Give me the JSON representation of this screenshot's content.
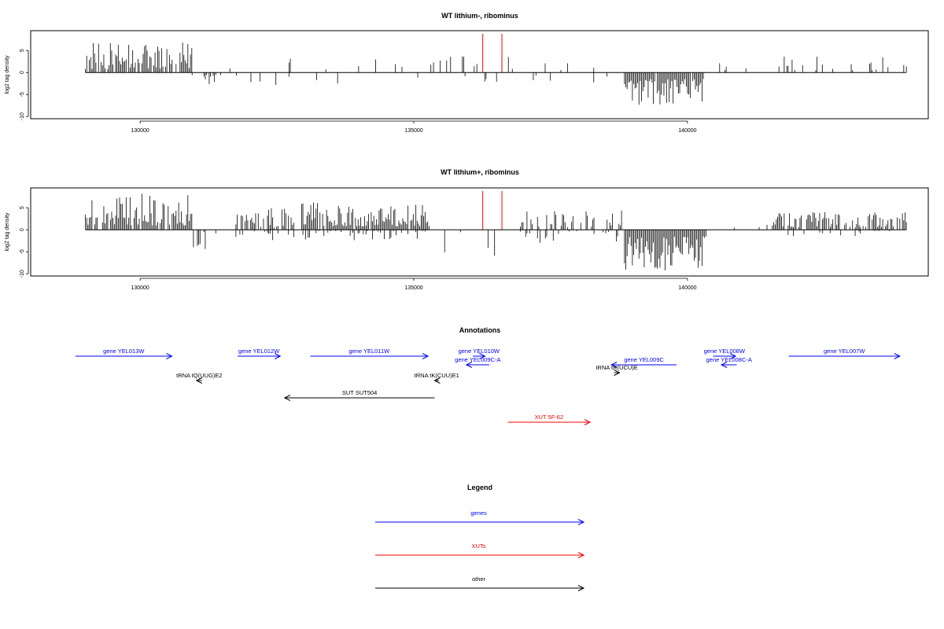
{
  "chart_data": [
    {
      "type": "bar",
      "title": "WT lithium-, ribominus",
      "ylabel": "log2 tag density",
      "xlim": [
        128000,
        144400
      ],
      "ylim": [
        -10.5,
        9.5
      ],
      "xticks": [
        130000,
        135000,
        140000
      ],
      "yticks": [
        -10,
        -5,
        0,
        5
      ],
      "grid": false,
      "markers": [
        136260,
        136610
      ],
      "marker_color": "#ff0000",
      "segments": [
        {
          "x0": 129000,
          "x1": 130950,
          "sign": 1,
          "min": 0.8,
          "max": 7.0,
          "density": 0.85
        },
        {
          "x0": 130950,
          "x1": 131400,
          "sign": -1,
          "min": 0.5,
          "max": 3.0,
          "density": 0.3
        },
        {
          "x0": 131400,
          "x1": 138600,
          "sign": 1,
          "min": 0.5,
          "max": 3.8,
          "density": 0.08
        },
        {
          "x0": 131400,
          "x1": 138600,
          "sign": -1,
          "min": 0.5,
          "max": 3.5,
          "density": 0.06
        },
        {
          "x0": 138850,
          "x1": 140300,
          "sign": -1,
          "min": 1.5,
          "max": 7.5,
          "density": 0.95
        },
        {
          "x0": 140300,
          "x1": 141500,
          "sign": 1,
          "min": 0.5,
          "max": 2.5,
          "density": 0.05
        },
        {
          "x0": 141600,
          "x1": 144000,
          "sign": 1,
          "min": 0.5,
          "max": 3.8,
          "density": 0.2
        }
      ]
    },
    {
      "type": "bar",
      "title": "WT lithium+, ribominus",
      "ylabel": "log2 tag density",
      "xlim": [
        128000,
        144400
      ],
      "ylim": [
        -10.5,
        9.5
      ],
      "xticks": [
        130000,
        135000,
        140000
      ],
      "yticks": [
        -10,
        -5,
        0,
        5
      ],
      "grid": false,
      "markers": [
        136260,
        136610
      ],
      "marker_color": "#ff0000",
      "segments": [
        {
          "x0": 129000,
          "x1": 130950,
          "sign": 1,
          "min": 1.0,
          "max": 8.5,
          "density": 0.95
        },
        {
          "x0": 130950,
          "x1": 131400,
          "sign": -1,
          "min": 0.5,
          "max": 4.5,
          "density": 0.35
        },
        {
          "x0": 131750,
          "x1": 132850,
          "sign": 1,
          "min": 0.5,
          "max": 5.0,
          "density": 0.5
        },
        {
          "x0": 132950,
          "x1": 135300,
          "sign": 1,
          "min": 0.8,
          "max": 6.5,
          "density": 0.9
        },
        {
          "x0": 131750,
          "x1": 135300,
          "sign": -1,
          "min": 0.3,
          "max": 2.5,
          "density": 0.25
        },
        {
          "x0": 135300,
          "x1": 136800,
          "sign": -1,
          "min": 0.5,
          "max": 6.0,
          "density": 0.12
        },
        {
          "x0": 136900,
          "x1": 138800,
          "sign": 1,
          "min": 0.5,
          "max": 4.5,
          "density": 0.45
        },
        {
          "x0": 136900,
          "x1": 138800,
          "sign": -1,
          "min": 0.3,
          "max": 3.0,
          "density": 0.15
        },
        {
          "x0": 138850,
          "x1": 140350,
          "sign": -1,
          "min": 1.5,
          "max": 9.5,
          "density": 0.97
        },
        {
          "x0": 140350,
          "x1": 141600,
          "sign": 1,
          "min": 0.5,
          "max": 3.5,
          "density": 0.1
        },
        {
          "x0": 141600,
          "x1": 144000,
          "sign": 1,
          "min": 0.5,
          "max": 4.0,
          "density": 0.8
        },
        {
          "x0": 141600,
          "x1": 144000,
          "sign": -1,
          "min": 0.3,
          "max": 1.5,
          "density": 0.15
        }
      ]
    }
  ],
  "annotations": {
    "title": "Annotations",
    "items": [
      {
        "label": "gene YEL013W",
        "start": 128820,
        "end": 130580,
        "color": "#0000ff",
        "row": 0
      },
      {
        "label": "gene YEL012W",
        "start": 131780,
        "end": 132560,
        "color": "#0000ff",
        "row": 0
      },
      {
        "label": "gene YEL011W",
        "start": 133110,
        "end": 135260,
        "color": "#0000ff",
        "row": 0
      },
      {
        "label": "gene YEL010W",
        "start": 136080,
        "end": 136300,
        "color": "#0000ff",
        "row": 0
      },
      {
        "label": "gene YEL009C-A",
        "start": 136380,
        "end": 135960,
        "color": "#0000ff",
        "row": 1
      },
      {
        "label": "gene YEL009C",
        "start": 139800,
        "end": 138610,
        "color": "#0000ff",
        "row": 1
      },
      {
        "label": "gene YEL008W",
        "start": 140470,
        "end": 140880,
        "color": "#0000ff",
        "row": 0
      },
      {
        "label": "gene YEL008C-A",
        "start": 140900,
        "end": 140620,
        "color": "#0000ff",
        "row": 1
      },
      {
        "label": "gene YEL007W",
        "start": 141850,
        "end": 143880,
        "color": "#0000ff",
        "row": 0
      },
      {
        "label": "tRNA tQ(UUG)E2",
        "start": 131130,
        "end": 131030,
        "color": "#000000",
        "row": 3
      },
      {
        "label": "tRNA tK(CUU)E1",
        "start": 135460,
        "end": 135380,
        "color": "#000000",
        "row": 3
      },
      {
        "label": "tRNA tR(UCU)E",
        "start": 138660,
        "end": 138760,
        "color": "#000000",
        "row": 2
      },
      {
        "label": "SUT SUT504",
        "start": 135380,
        "end": 132640,
        "color": "#000000",
        "row": 4
      },
      {
        "label": "XUT 5F-62",
        "start": 136720,
        "end": 138220,
        "color": "#ff0000",
        "row": 5
      }
    ]
  },
  "legend": {
    "title": "Legend",
    "items": [
      {
        "label": "genes",
        "color": "#0000ff"
      },
      {
        "label": "XUTs",
        "color": "#ff0000"
      },
      {
        "label": "other",
        "color": "#000000"
      }
    ]
  }
}
